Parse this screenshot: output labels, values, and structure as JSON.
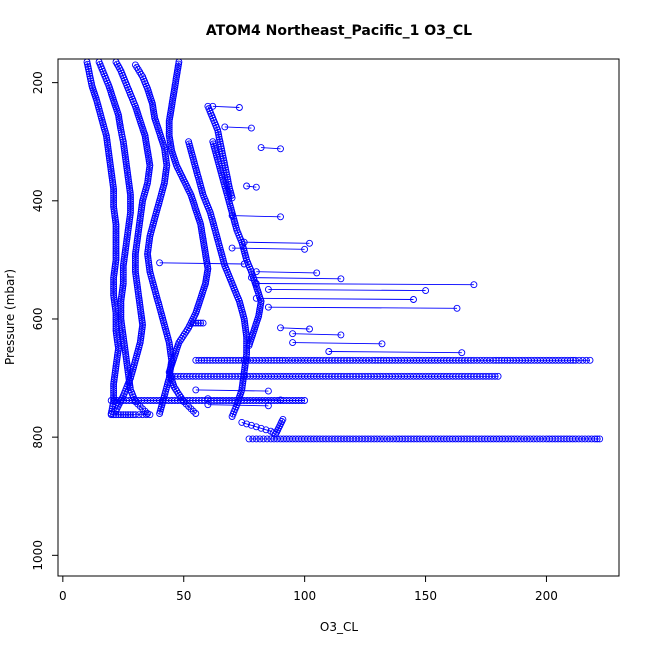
{
  "chart_data": {
    "type": "scatter",
    "title": "ATOM4 Northeast_Pacific_1 O3_CL",
    "xlabel": "O3_CL",
    "ylabel": "Pressure (mbar)",
    "xlim": [
      -2,
      230
    ],
    "ylim": [
      1035,
      160
    ],
    "y_reversed": true,
    "x_ticks": [
      0,
      50,
      100,
      150,
      200
    ],
    "y_ticks": [
      200,
      400,
      600,
      800,
      1000
    ],
    "grid": false,
    "marker": "open-circle",
    "color": "#0000ff",
    "profiles": [
      {
        "points": [
          [
            10,
            165
          ],
          [
            11,
            185
          ],
          [
            12,
            205
          ],
          [
            14,
            230
          ],
          [
            16,
            260
          ],
          [
            18,
            290
          ],
          [
            19,
            320
          ],
          [
            20,
            350
          ],
          [
            21,
            380
          ],
          [
            21,
            410
          ],
          [
            22,
            440
          ],
          [
            22,
            470
          ],
          [
            22,
            500
          ],
          [
            21,
            530
          ],
          [
            21,
            560
          ],
          [
            22,
            590
          ],
          [
            22,
            620
          ],
          [
            23,
            650
          ],
          [
            22,
            680
          ],
          [
            21,
            710
          ],
          [
            21,
            740
          ],
          [
            20,
            760
          ]
        ]
      },
      {
        "points": [
          [
            15,
            165
          ],
          [
            17,
            185
          ],
          [
            19,
            205
          ],
          [
            21,
            230
          ],
          [
            23,
            255
          ],
          [
            24,
            280
          ],
          [
            25,
            300
          ],
          [
            26,
            330
          ],
          [
            27,
            360
          ],
          [
            28,
            390
          ],
          [
            28,
            420
          ],
          [
            27,
            450
          ],
          [
            26,
            480
          ],
          [
            25,
            510
          ],
          [
            25,
            540
          ],
          [
            24,
            570
          ],
          [
            24,
            600
          ],
          [
            25,
            630
          ],
          [
            26,
            660
          ],
          [
            27,
            690
          ],
          [
            28,
            720
          ],
          [
            30,
            740
          ],
          [
            35,
            760
          ]
        ]
      },
      {
        "points": [
          [
            22,
            165
          ],
          [
            24,
            180
          ],
          [
            26,
            200
          ],
          [
            28,
            220
          ],
          [
            30,
            240
          ],
          [
            32,
            265
          ],
          [
            34,
            290
          ],
          [
            35,
            315
          ],
          [
            36,
            340
          ],
          [
            35,
            370
          ],
          [
            33,
            400
          ],
          [
            32,
            430
          ],
          [
            31,
            460
          ],
          [
            30,
            490
          ],
          [
            30,
            520
          ],
          [
            31,
            550
          ],
          [
            32,
            580
          ],
          [
            33,
            610
          ],
          [
            32,
            640
          ],
          [
            30,
            670
          ],
          [
            28,
            700
          ],
          [
            25,
            730
          ],
          [
            22,
            755
          ]
        ]
      },
      {
        "points": [
          [
            30,
            170
          ],
          [
            33,
            190
          ],
          [
            35,
            210
          ],
          [
            37,
            235
          ],
          [
            38,
            260
          ],
          [
            40,
            285
          ],
          [
            42,
            310
          ],
          [
            43,
            340
          ],
          [
            42,
            370
          ],
          [
            40,
            400
          ],
          [
            38,
            430
          ],
          [
            36,
            460
          ],
          [
            35,
            490
          ],
          [
            36,
            520
          ],
          [
            38,
            550
          ],
          [
            40,
            580
          ],
          [
            42,
            610
          ],
          [
            44,
            640
          ],
          [
            45,
            670
          ],
          [
            44,
            700
          ],
          [
            42,
            730
          ],
          [
            40,
            760
          ]
        ]
      },
      {
        "points": [
          [
            48,
            165
          ],
          [
            47,
            190
          ],
          [
            46,
            215
          ],
          [
            45,
            240
          ],
          [
            44,
            265
          ],
          [
            44,
            290
          ],
          [
            45,
            315
          ],
          [
            47,
            340
          ],
          [
            50,
            365
          ],
          [
            53,
            390
          ],
          [
            55,
            415
          ],
          [
            57,
            440
          ],
          [
            58,
            465
          ],
          [
            59,
            490
          ],
          [
            60,
            515
          ],
          [
            59,
            540
          ],
          [
            57,
            565
          ],
          [
            55,
            590
          ],
          [
            52,
            615
          ],
          [
            48,
            640
          ],
          [
            46,
            665
          ],
          [
            44,
            690
          ],
          [
            46,
            715
          ],
          [
            50,
            740
          ],
          [
            55,
            760
          ]
        ]
      },
      {
        "points": [
          [
            52,
            300
          ],
          [
            54,
            330
          ],
          [
            56,
            360
          ],
          [
            58,
            390
          ],
          [
            61,
            420
          ],
          [
            63,
            450
          ],
          [
            65,
            480
          ],
          [
            67,
            510
          ],
          [
            70,
            540
          ],
          [
            73,
            570
          ],
          [
            75,
            600
          ],
          [
            76,
            630
          ],
          [
            76,
            660
          ],
          [
            75,
            690
          ],
          [
            74,
            720
          ],
          [
            72,
            745
          ],
          [
            70,
            765
          ]
        ]
      },
      {
        "points": [
          [
            62,
            300
          ],
          [
            64,
            330
          ],
          [
            66,
            360
          ],
          [
            68,
            390
          ],
          [
            70,
            420
          ],
          [
            72,
            450
          ],
          [
            74,
            470
          ],
          [
            76,
            500
          ],
          [
            78,
            520
          ],
          [
            80,
            545
          ],
          [
            82,
            570
          ],
          [
            81,
            595
          ],
          [
            79,
            620
          ],
          [
            77,
            645
          ]
        ]
      },
      {
        "points": [
          [
            60,
            240
          ],
          [
            62,
            260
          ],
          [
            64,
            280
          ],
          [
            65,
            300
          ],
          [
            66,
            320
          ],
          [
            67,
            340
          ],
          [
            68,
            360
          ],
          [
            69,
            380
          ],
          [
            70,
            395
          ]
        ]
      },
      {
        "points": [
          [
            74,
            775
          ],
          [
            78,
            780
          ],
          [
            82,
            785
          ],
          [
            86,
            790
          ],
          [
            88,
            795
          ],
          [
            91,
            770
          ]
        ]
      }
    ],
    "horizontal_series": [
      {
        "pressure": 670,
        "x": [
          55,
          62,
          68,
          75,
          80,
          85,
          92,
          100,
          110,
          120,
          128,
          135,
          140,
          150,
          160,
          165,
          170,
          178,
          185,
          190,
          195,
          200,
          205,
          210,
          212,
          215,
          218
        ]
      },
      {
        "pressure": 697,
        "x": [
          45,
          50,
          55,
          60,
          65,
          70,
          75,
          80,
          85,
          90,
          95,
          100,
          105,
          110,
          115,
          120,
          125,
          130,
          135,
          140,
          145,
          150,
          155,
          160,
          165,
          170,
          175,
          180
        ]
      },
      {
        "pressure": 738,
        "x": [
          20,
          25,
          30,
          35,
          40,
          45,
          50,
          55,
          60,
          65,
          70,
          75,
          80,
          85,
          90,
          95,
          100
        ]
      },
      {
        "pressure": 803,
        "x": [
          77,
          80,
          83,
          86,
          90,
          95,
          100,
          105,
          110,
          115,
          120,
          125,
          130,
          138,
          150,
          160,
          172,
          183,
          188,
          192,
          196,
          200,
          206,
          212,
          216,
          220,
          222
        ]
      },
      {
        "pressure": 762,
        "x": [
          20,
          22,
          24,
          26,
          28,
          30,
          33,
          36
        ]
      },
      {
        "pressure": 607,
        "x": [
          54,
          56,
          58
        ]
      }
    ],
    "excursions": [
      {
        "pressure": 540,
        "x_from": 80,
        "x_to": 170
      },
      {
        "pressure": 550,
        "x_from": 85,
        "x_to": 150
      },
      {
        "pressure": 580,
        "x_from": 85,
        "x_to": 163
      },
      {
        "pressure": 565,
        "x_from": 80,
        "x_to": 145
      },
      {
        "pressure": 530,
        "x_from": 78,
        "x_to": 115
      },
      {
        "pressure": 520,
        "x_from": 80,
        "x_to": 105
      },
      {
        "pressure": 505,
        "x_from": 40,
        "x_to": 75
      },
      {
        "pressure": 470,
        "x_from": 75,
        "x_to": 102
      },
      {
        "pressure": 480,
        "x_from": 70,
        "x_to": 100
      },
      {
        "pressure": 425,
        "x_from": 70,
        "x_to": 90
      },
      {
        "pressure": 240,
        "x_from": 62,
        "x_to": 73
      },
      {
        "pressure": 275,
        "x_from": 67,
        "x_to": 78
      },
      {
        "pressure": 310,
        "x_from": 82,
        "x_to": 90
      },
      {
        "pressure": 375,
        "x_from": 76,
        "x_to": 80
      },
      {
        "pressure": 640,
        "x_from": 95,
        "x_to": 132
      },
      {
        "pressure": 655,
        "x_from": 110,
        "x_to": 165
      },
      {
        "pressure": 625,
        "x_from": 95,
        "x_to": 115
      },
      {
        "pressure": 615,
        "x_from": 90,
        "x_to": 102
      },
      {
        "pressure": 735,
        "x_from": 60,
        "x_to": 90
      },
      {
        "pressure": 745,
        "x_from": 60,
        "x_to": 85
      },
      {
        "pressure": 720,
        "x_from": 55,
        "x_to": 85
      }
    ]
  }
}
